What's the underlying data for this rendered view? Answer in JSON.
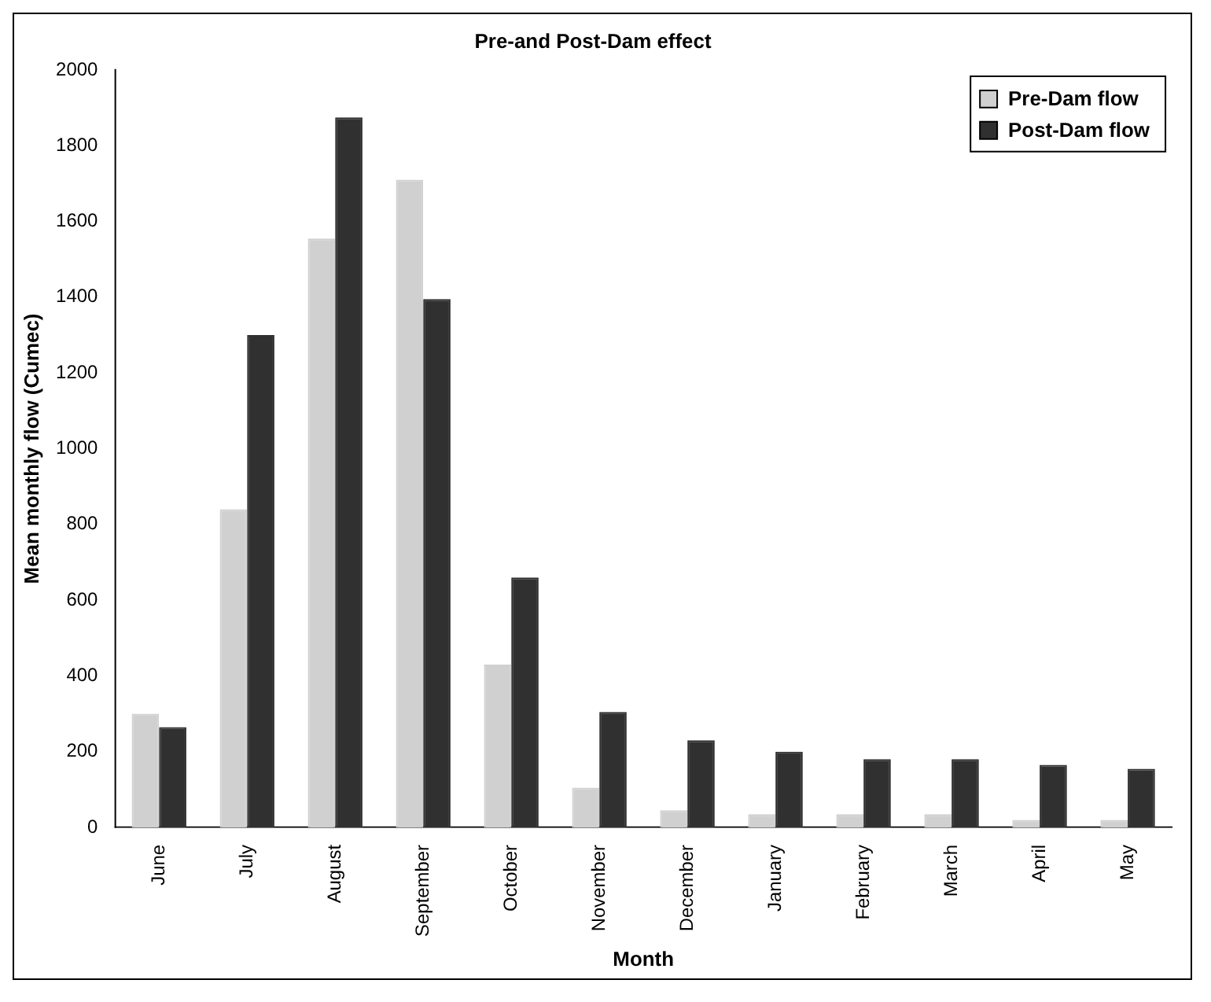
{
  "chart_data": {
    "type": "bar",
    "title": "Pre-and Post-Dam effect",
    "xlabel": "Month",
    "ylabel": "Mean monthly flow (Cumec)",
    "categories": [
      "June",
      "July",
      "August",
      "September",
      "October",
      "November",
      "December",
      "January",
      "February",
      "March",
      "April",
      "May"
    ],
    "series": [
      {
        "name": "Pre-Dam flow",
        "color": "#d0d0d0",
        "values": [
          300,
          840,
          1555,
          1710,
          430,
          105,
          45,
          35,
          35,
          35,
          20,
          20
        ]
      },
      {
        "name": "Post-Dam flow",
        "color": "#303030",
        "values": [
          265,
          1300,
          1875,
          1395,
          660,
          305,
          230,
          200,
          180,
          180,
          165,
          155
        ]
      }
    ],
    "ylim": [
      0,
      2000
    ],
    "yticks": [
      0,
      200,
      400,
      600,
      800,
      1000,
      1200,
      1400,
      1600,
      1800,
      2000
    ],
    "grid": false,
    "legend": "top right"
  }
}
